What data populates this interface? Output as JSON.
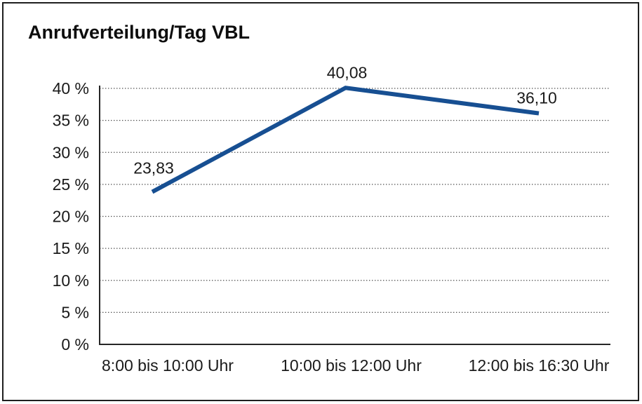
{
  "title": "Anrufverteilung/Tag VBL",
  "colors": {
    "line": "#174f92",
    "text": "#1a1a1a",
    "grid": "#4d4d4d",
    "axis": "#262626",
    "border": "#1f1f1f",
    "background": "#ffffff"
  },
  "chart_data": {
    "type": "line",
    "title": "Anrufverteilung/Tag VBL",
    "categories": [
      "8:00 bis 10:00 Uhr",
      "10:00 bis 12:00 Uhr",
      "12:00 bis 16:30 Uhr"
    ],
    "values": [
      23.83,
      40.08,
      36.1
    ],
    "point_labels": [
      "23,83",
      "40,08",
      "36,10"
    ],
    "xlabel": "",
    "ylabel": "",
    "ylim": [
      0,
      40
    ],
    "ytick_step": 5,
    "ytick_suffix": " %",
    "grid": "horizontal-dotted",
    "legend": "none"
  }
}
